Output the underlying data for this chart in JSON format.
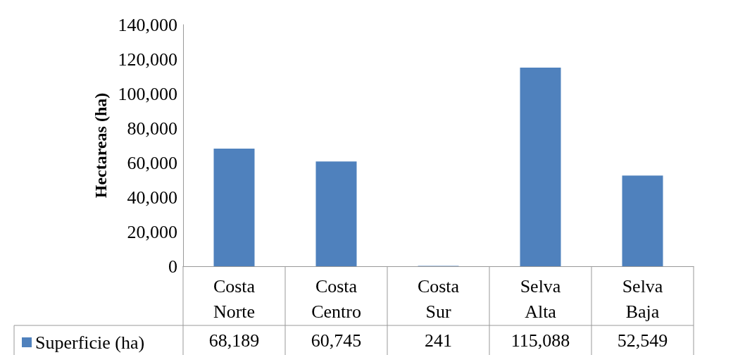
{
  "chart_data": {
    "type": "bar",
    "ylabel": "Hectareas (ha)",
    "categories": [
      "Costa Norte",
      "Costa Centro",
      "Costa Sur",
      "Selva Alta",
      "Selva Baja"
    ],
    "series": [
      {
        "name": "Superficie (ha)",
        "color": "#4f81bd",
        "values": [
          68189,
          60745,
          241,
          115088,
          52549
        ],
        "value_labels": [
          "68,189",
          "60,745",
          "241",
          "115,088",
          "52,549"
        ]
      }
    ],
    "ylim": [
      0,
      140000
    ],
    "yticks": [
      0,
      {
        "value": 20000,
        "label": "20,000"
      },
      {
        "value": 40000,
        "label": "40,000"
      },
      {
        "value": 60000,
        "label": "60,000"
      },
      {
        "value": 80000,
        "label": "80,000"
      },
      {
        "value": 100000,
        "label": "100,000"
      },
      {
        "value": 120000,
        "label": "120,000"
      },
      {
        "value": 140000,
        "label": "140,000"
      }
    ],
    "grid": false,
    "legend": "bottom left"
  }
}
